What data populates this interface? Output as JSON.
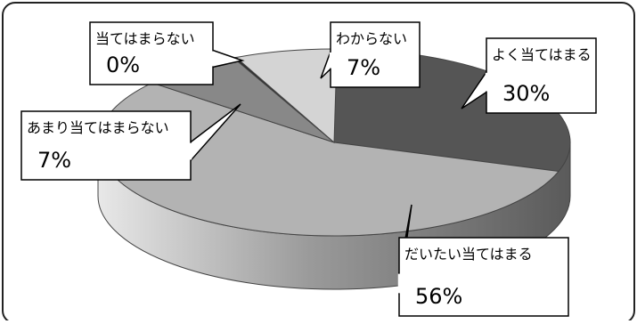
{
  "colors": {
    "series": [
      "#555555",
      "#b3b3b3",
      "#888888",
      "#2a2a2a",
      "#d4d4d4"
    ],
    "callout_border": "#000000",
    "callout_fill": "#ffffff"
  },
  "chart_data": {
    "type": "pie",
    "style": "3d",
    "legend": "none",
    "slices": [
      {
        "label": "よく当てはまる",
        "value": 30,
        "value_label": "30%"
      },
      {
        "label": "だいたい当てはまる",
        "value": 56,
        "value_label": "56%"
      },
      {
        "label": "あまり当てはまらない",
        "value": 7,
        "value_label": "7%"
      },
      {
        "label": "当てはまらない",
        "value": 0,
        "value_label": "0%"
      },
      {
        "label": "わからない",
        "value": 7,
        "value_label": "7%"
      }
    ]
  }
}
